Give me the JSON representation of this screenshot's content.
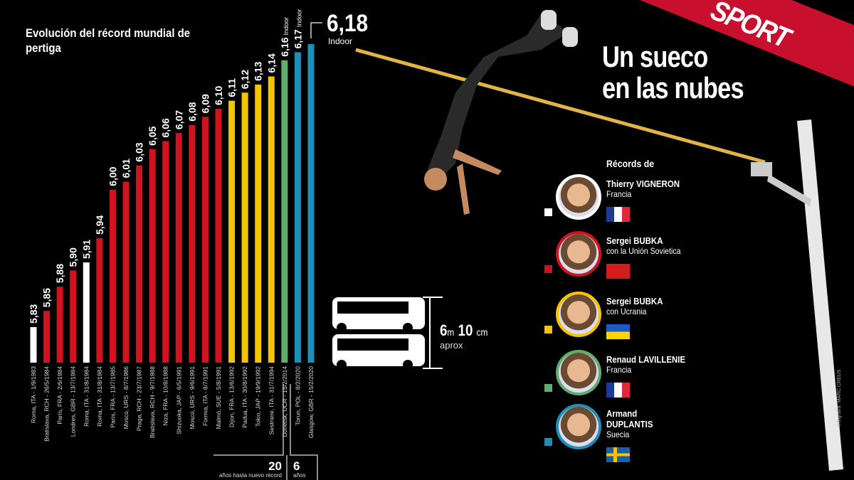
{
  "headline": [
    "Un sueco",
    "en las nubes"
  ],
  "brand": "SPORT",
  "credit": "Infografía: MARC CREUS",
  "bus_note": {
    "value_m": "6",
    "unit_m": "m",
    "value_cm": "10",
    "unit_cm": "cm",
    "sub": "aprox"
  },
  "gaps": [
    {
      "value": "20",
      "label": "años hasta nuevo récord"
    },
    {
      "value": "6",
      "label": "años"
    }
  ],
  "legend": {
    "title": "Récords de",
    "items": [
      {
        "name": "Thierry VIGNERON",
        "country": "Francia",
        "color": "#ffffff",
        "flag": "france"
      },
      {
        "name": "Sergei BUBKA",
        "country": "con la Unión Sovietica",
        "color": "#d0131f",
        "flag": "ussr"
      },
      {
        "name": "Sergei BUBKA",
        "country": "con Ucrania",
        "color": "#f5c400",
        "flag": "ukraine"
      },
      {
        "name": "Renaud LAVILLENIE",
        "country": "Francia",
        "color": "#5fae6e",
        "flag": "france"
      },
      {
        "name": "Armand",
        "name2": "DUPLANTIS",
        "country": "Suecia",
        "color": "#1b8fb5",
        "flag": "sweden"
      }
    ]
  },
  "chart_data": {
    "type": "bar",
    "title": "Evolución del récord mundial de pertiga",
    "indoor_label": "Indoor",
    "categories": [
      "Roma, ITA - 1/9/1983",
      "Bratislava, RCH - 26/5/1984",
      "París, FRA - 2/6/1984",
      "Londres, GBR - 13/7/1984",
      "Roma, ITA - 31/8/1984",
      "Roma, ITA - 31/8/1984",
      "París, FRA - 13/7/1985",
      "Moscú, URS - 8/7/1986",
      "Praga, RCH - 23/7/1987",
      "Bratislava, RCH - 9/7/1988",
      "Niza, FRA - 10/8/1988",
      "Shizuoka, JAP - 6/5/1991",
      "Moscú, URS - 9/6/1991",
      "Formia, ITA - 8/7/1991",
      "Malmö, SUE - 5/8/1991",
      "Dijon, FRA - 13/6/1992",
      "Padua, ITA - 30/8/1992",
      "Tokio, JAP - 19/9/1992",
      "Sestriere, ITA - 31/7/1994",
      "Donetsk, UCR - 15/2/2014",
      "Torun, POL - 8/2/2020",
      "Glasgow, GBR - 15/2/2020"
    ],
    "values": [
      5.83,
      5.85,
      5.88,
      5.9,
      5.91,
      5.94,
      6.0,
      6.01,
      6.03,
      6.05,
      6.06,
      6.07,
      6.08,
      6.09,
      6.1,
      6.11,
      6.12,
      6.13,
      6.14,
      6.16,
      6.17,
      6.18
    ],
    "value_labels": [
      "5,83",
      "5,85",
      "5,88",
      "5,90",
      "5,91",
      "5,94",
      "6,00",
      "6,01",
      "6,03",
      "6,05",
      "6,06",
      "6,07",
      "6,08",
      "6,09",
      "6,10",
      "6,11",
      "6,12",
      "6,13",
      "6,14",
      "6,16",
      "6,17",
      "6,18"
    ],
    "athlete_index": [
      0,
      1,
      1,
      1,
      0,
      1,
      1,
      1,
      1,
      1,
      1,
      1,
      1,
      1,
      1,
      2,
      2,
      2,
      2,
      3,
      4,
      4
    ],
    "indoor": [
      false,
      false,
      false,
      false,
      false,
      false,
      false,
      false,
      false,
      false,
      false,
      false,
      false,
      false,
      false,
      false,
      false,
      false,
      false,
      true,
      true,
      true
    ],
    "unit": "m"
  }
}
